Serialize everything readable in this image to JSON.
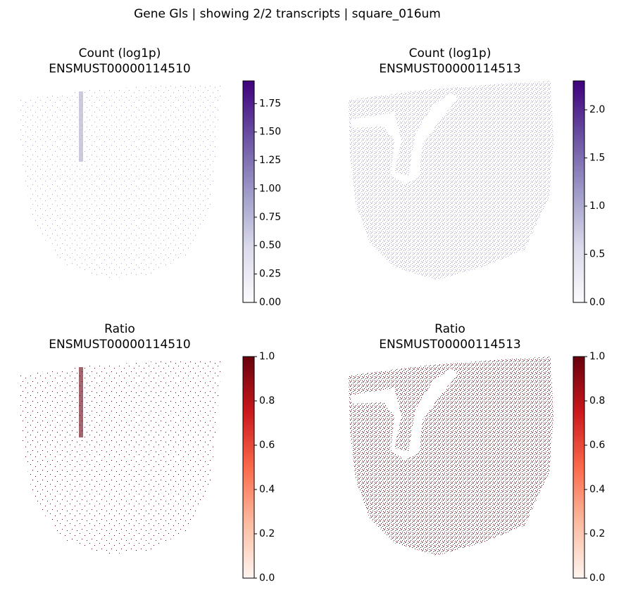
{
  "title": "Gene Gls | showing 2/2 transcripts | square_016um",
  "chart_data": [
    {
      "type": "scatter",
      "title": "Count (log1p)",
      "subtitle": "ENSMUST00000114510",
      "point_color": "#a9a8c7",
      "colormap": [
        "#fcfbfd",
        "#dadaeb",
        "#9e9ac8",
        "#6a51a3",
        "#3f007d"
      ],
      "ylim": [
        0,
        1.95
      ],
      "yticks": [
        {
          "value": 0,
          "label": "0.00"
        },
        0.25,
        {
          "value": 0.5,
          "label": "0.50"
        },
        0.75,
        {
          "value": 1,
          "label": "1.00"
        },
        1.25,
        {
          "value": 1.5,
          "label": "1.50"
        },
        1.75
      ]
    },
    {
      "type": "scatter",
      "title": "Count (log1p)",
      "subtitle": "ENSMUST00000114513",
      "point_color": "#a9a8c7",
      "colormap": [
        "#fcfbfd",
        "#dadaeb",
        "#9e9ac8",
        "#6a51a3",
        "#3f007d"
      ],
      "ylim": [
        0,
        2.3
      ],
      "yticks": [
        {
          "value": 0,
          "label": "0.0"
        },
        0.5,
        {
          "value": 1,
          "label": "1.0"
        },
        1.5,
        {
          "value": 2,
          "label": "2.0"
        }
      ]
    },
    {
      "type": "scatter",
      "title": "Ratio",
      "subtitle": "ENSMUST00000114510",
      "point_color": "#67000d",
      "colormap": [
        "#fff5f0",
        "#fcbba1",
        "#fb6a4a",
        "#cb181d",
        "#67000d"
      ],
      "ylim": [
        0,
        1
      ],
      "yticks": [
        {
          "value": 0,
          "label": "0.0"
        },
        0.2,
        0.4,
        0.6,
        0.8,
        {
          "value": 1,
          "label": "1.0"
        }
      ]
    },
    {
      "type": "scatter",
      "title": "Ratio",
      "subtitle": "ENSMUST00000114513",
      "point_color": "#67000d",
      "colormap": [
        "#fff5f0",
        "#fcbba1",
        "#fb6a4a",
        "#cb181d",
        "#67000d"
      ],
      "ylim": [
        0,
        1
      ],
      "yticks": [
        {
          "value": 0,
          "label": "0.0"
        },
        0.2,
        0.4,
        0.6,
        0.8,
        {
          "value": 1,
          "label": "1.0"
        }
      ]
    }
  ]
}
